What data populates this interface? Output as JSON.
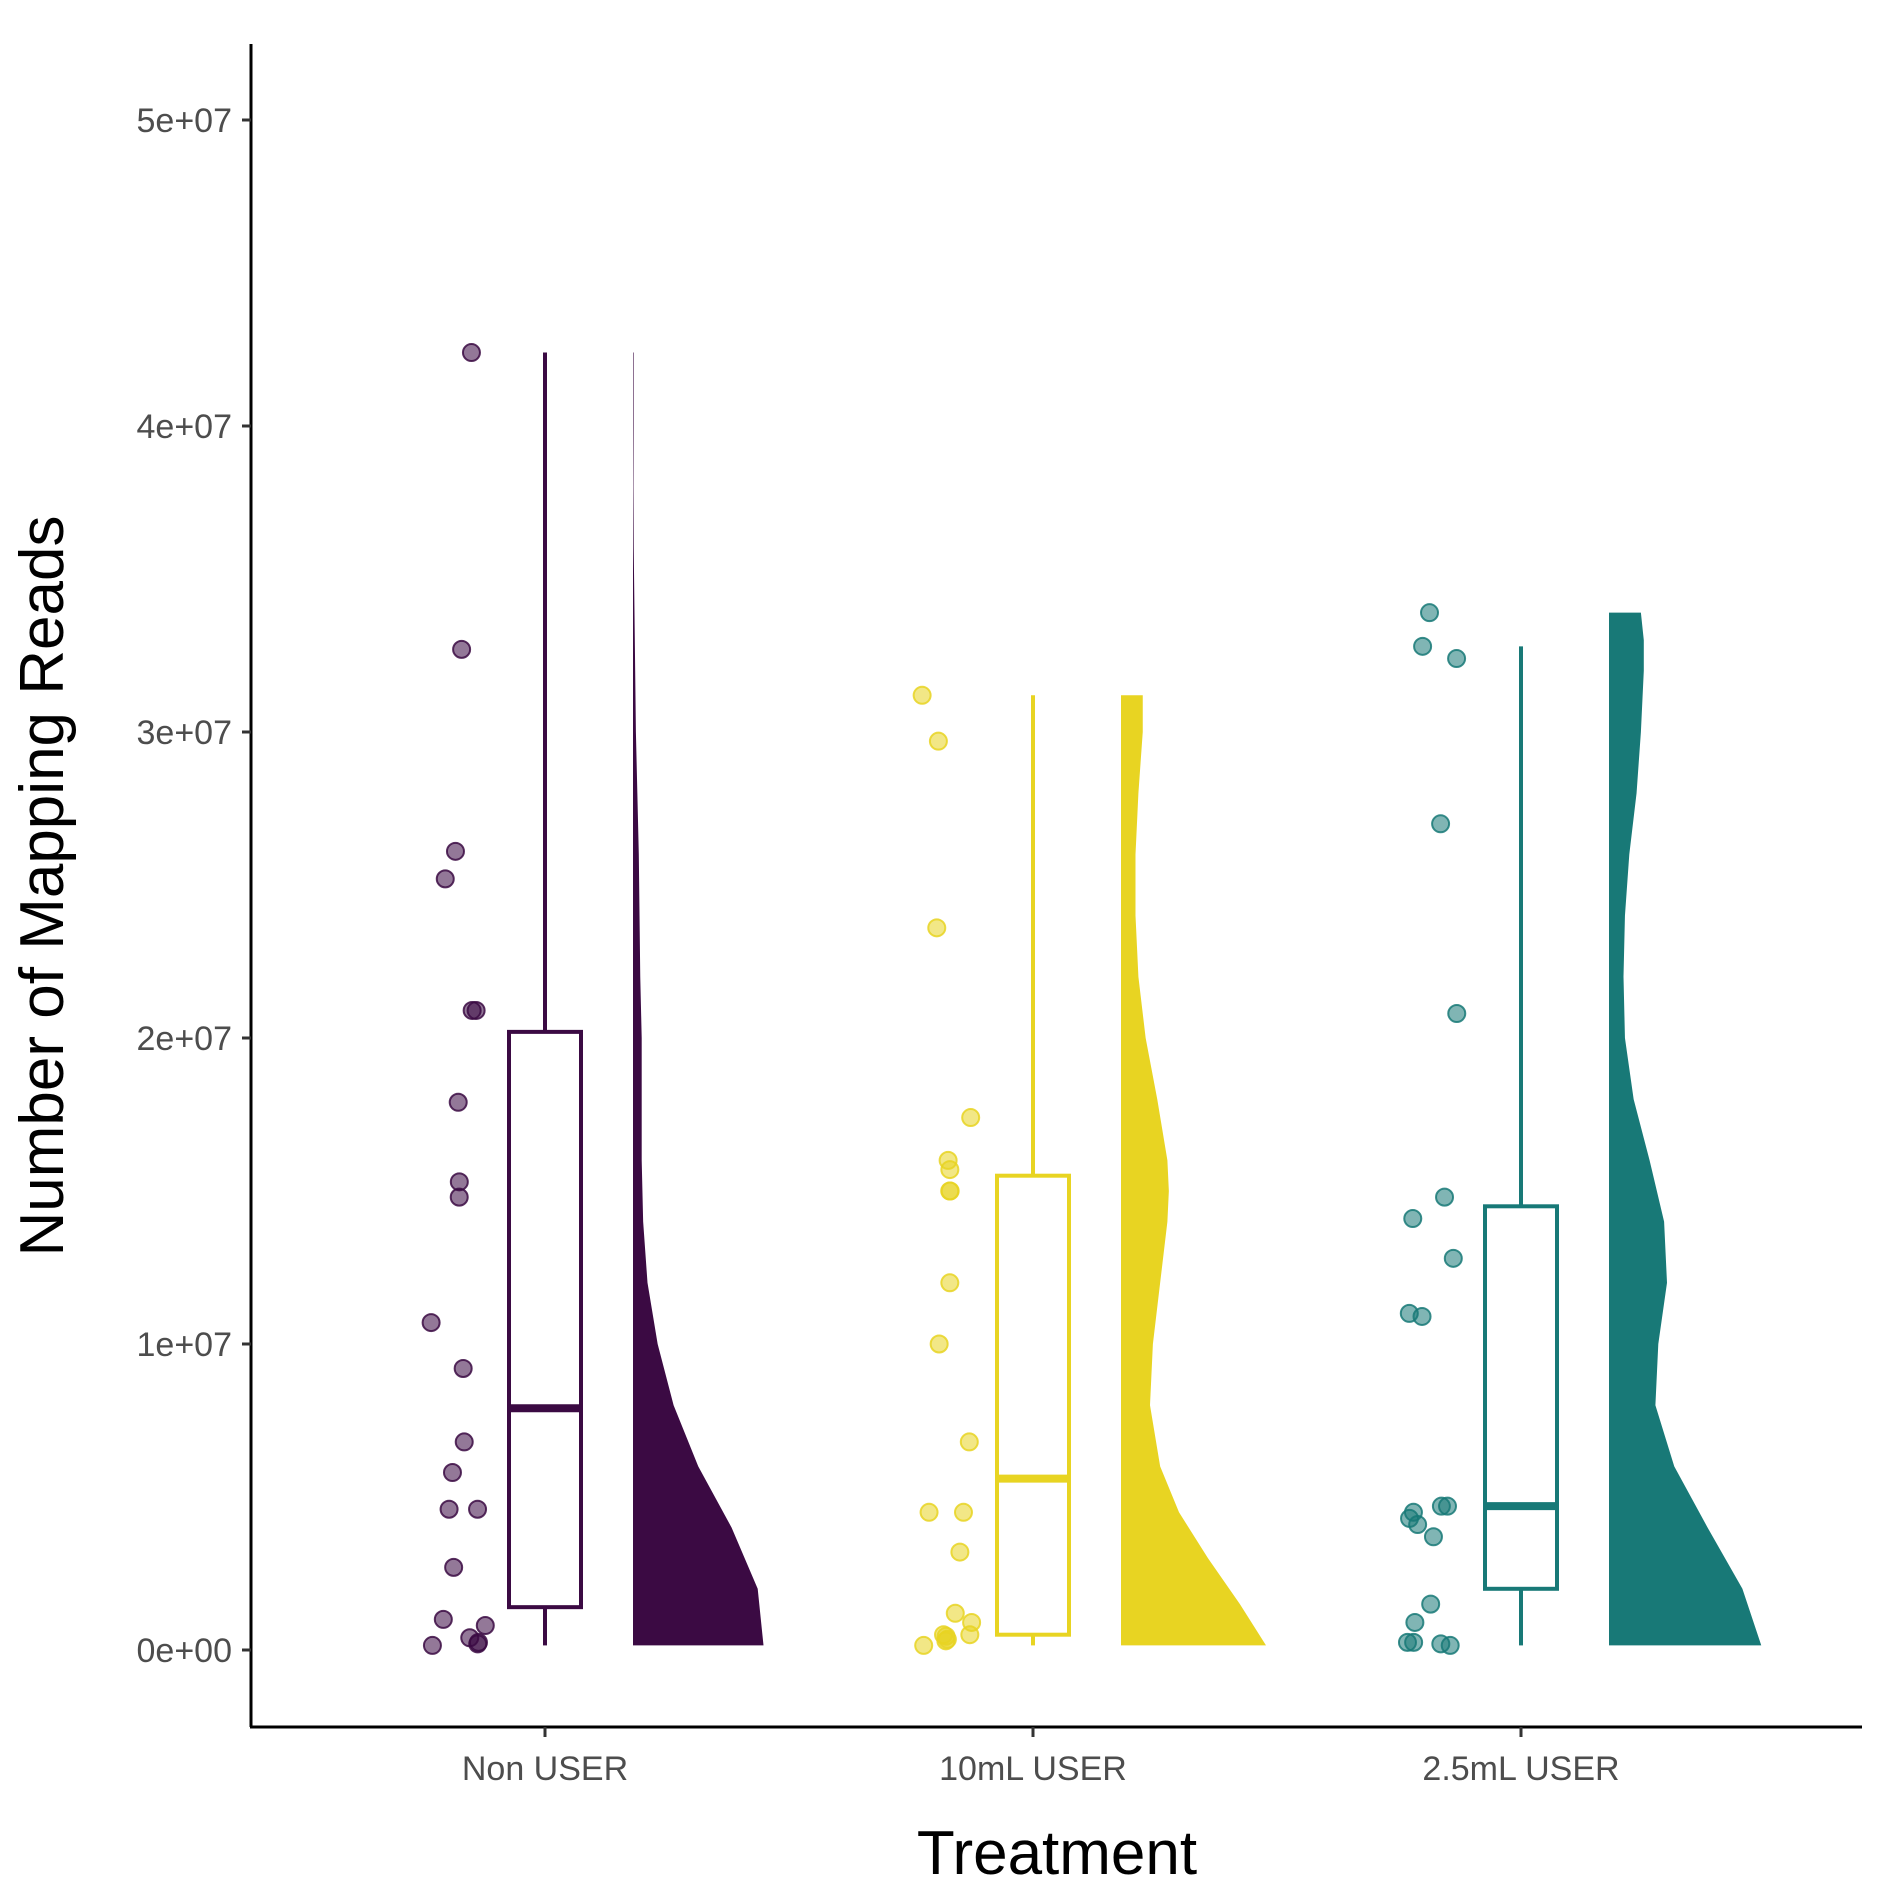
{
  "chart_data": {
    "type": "raincloud",
    "title": "",
    "xlabel": "Treatment",
    "ylabel": "Number of Mapping Reads",
    "ylim": [
      -2500000,
      52500000
    ],
    "yticks": [
      0,
      10000000,
      20000000,
      30000000,
      40000000,
      50000000
    ],
    "ytick_labels": [
      "0e+00",
      "1e+07",
      "2e+07",
      "3e+07",
      "4e+07",
      "5e+07"
    ],
    "grid": false,
    "legend": "none",
    "categories": [
      "Non USER",
      "10mL USER",
      "2.5mL USER"
    ],
    "series": [
      {
        "category": "Non USER",
        "color": "#3b0a43",
        "points": [
          42400000,
          32700000,
          26100000,
          25200000,
          20900000,
          20900000,
          17900000,
          15300000,
          14800000,
          10700000,
          9200000,
          6800000,
          5800000,
          4600000,
          4600000,
          2700000,
          1000000,
          800000,
          400000,
          250000,
          200000,
          150000
        ],
        "box": {
          "min": 150000,
          "q1": 1400000,
          "median": 7900000,
          "q3": 20200000,
          "max": 42400000
        },
        "density": [
          [
            150000,
            0.9
          ],
          [
            2000000,
            0.86
          ],
          [
            4000000,
            0.68
          ],
          [
            6000000,
            0.45
          ],
          [
            8000000,
            0.28
          ],
          [
            10000000,
            0.17
          ],
          [
            12000000,
            0.1
          ],
          [
            14000000,
            0.07
          ],
          [
            16000000,
            0.06
          ],
          [
            18000000,
            0.06
          ],
          [
            20000000,
            0.06
          ],
          [
            22000000,
            0.05
          ],
          [
            24000000,
            0.045
          ],
          [
            26000000,
            0.04
          ],
          [
            28000000,
            0.03
          ],
          [
            30000000,
            0.02
          ],
          [
            32000000,
            0.015
          ],
          [
            34000000,
            0.01
          ],
          [
            36000000,
            0.005
          ],
          [
            38000000,
            0.003
          ],
          [
            40000000,
            0.004
          ],
          [
            42400000,
            0.004
          ]
        ]
      },
      {
        "category": "10mL USER",
        "color": "#e8d422",
        "points": [
          31200000,
          29700000,
          23600000,
          17400000,
          16000000,
          15700000,
          15000000,
          15000000,
          12000000,
          10000000,
          6800000,
          4500000,
          4500000,
          3200000,
          1200000,
          900000,
          500000,
          500000,
          450000,
          350000,
          300000,
          150000
        ],
        "box": {
          "min": 150000,
          "q1": 500000,
          "median": 5600000,
          "q3": 15500000,
          "max": 31200000
        },
        "density": [
          [
            150000,
            1.0
          ],
          [
            1500000,
            0.82
          ],
          [
            3000000,
            0.6
          ],
          [
            4500000,
            0.4
          ],
          [
            6000000,
            0.27
          ],
          [
            8000000,
            0.2
          ],
          [
            10000000,
            0.22
          ],
          [
            12000000,
            0.27
          ],
          [
            14000000,
            0.32
          ],
          [
            15000000,
            0.33
          ],
          [
            16000000,
            0.32
          ],
          [
            18000000,
            0.25
          ],
          [
            20000000,
            0.17
          ],
          [
            22000000,
            0.12
          ],
          [
            24000000,
            0.1
          ],
          [
            26000000,
            0.1
          ],
          [
            28000000,
            0.12
          ],
          [
            30000000,
            0.15
          ],
          [
            31200000,
            0.15
          ]
        ]
      },
      {
        "category": "2.5mL USER",
        "color": "#187977",
        "points": [
          33900000,
          32800000,
          32400000,
          27000000,
          20800000,
          14800000,
          14100000,
          12800000,
          11000000,
          10900000,
          4700000,
          4700000,
          4500000,
          4300000,
          4100000,
          3700000,
          1500000,
          900000,
          250000,
          250000,
          200000,
          150000
        ],
        "box": {
          "min": 150000,
          "q1": 2000000,
          "median": 4700000,
          "q3": 14500000,
          "max": 32800000
        },
        "density": [
          [
            150000,
            1.05
          ],
          [
            2000000,
            0.92
          ],
          [
            4000000,
            0.68
          ],
          [
            6000000,
            0.45
          ],
          [
            8000000,
            0.32
          ],
          [
            10000000,
            0.34
          ],
          [
            12000000,
            0.4
          ],
          [
            14000000,
            0.38
          ],
          [
            16000000,
            0.28
          ],
          [
            18000000,
            0.17
          ],
          [
            20000000,
            0.11
          ],
          [
            22000000,
            0.1
          ],
          [
            24000000,
            0.11
          ],
          [
            26000000,
            0.14
          ],
          [
            28000000,
            0.19
          ],
          [
            30000000,
            0.22
          ],
          [
            32000000,
            0.24
          ],
          [
            33000000,
            0.24
          ],
          [
            33900000,
            0.22
          ]
        ]
      }
    ]
  }
}
